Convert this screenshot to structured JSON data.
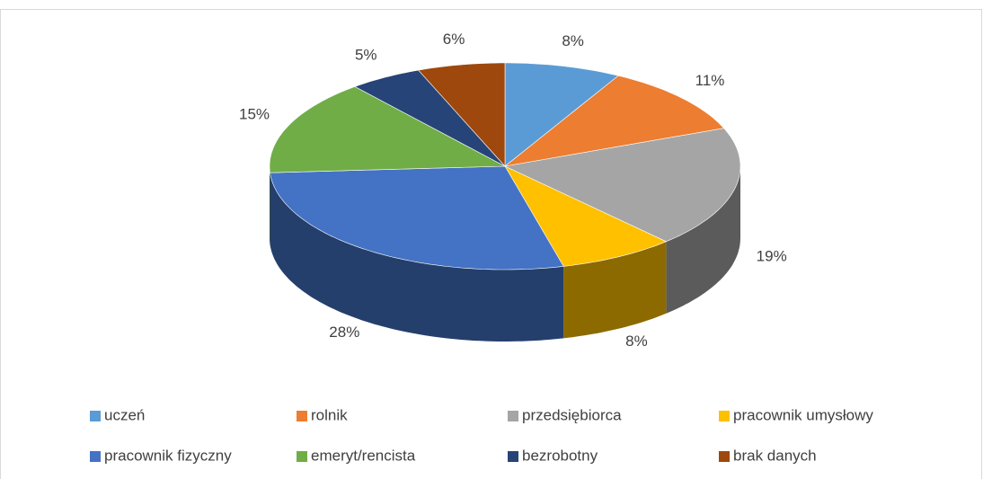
{
  "chart_data": {
    "type": "pie3d",
    "categories": [
      "uczeń",
      "rolnik",
      "przedsiębiorca",
      "pracownik umysłowy",
      "pracownik fizyczny",
      "emeryt/rencista",
      "bezrobotny",
      "brak danych"
    ],
    "values": [
      8,
      11,
      19,
      8,
      28,
      15,
      5,
      6
    ],
    "value_labels": [
      "8%",
      "11%",
      "19%",
      "8%",
      "28%",
      "15%",
      "5%",
      "6%"
    ],
    "colors": [
      "#5b9bd5",
      "#ed7d31",
      "#a5a5a5",
      "#ffc000",
      "#4472c4",
      "#70ad47",
      "#264478",
      "#9e480e"
    ],
    "legend": "bottom"
  }
}
